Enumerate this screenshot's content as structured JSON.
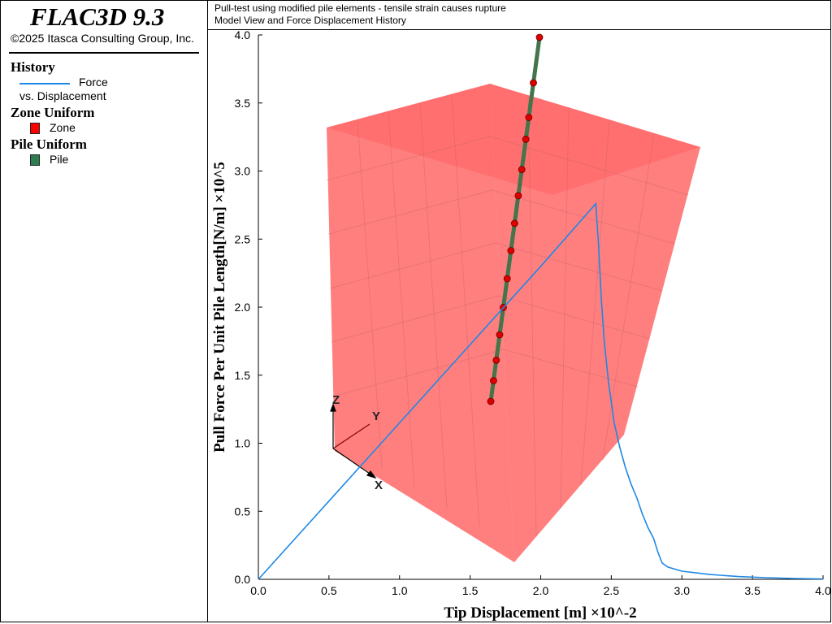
{
  "app": {
    "title": "FLAC3D 9.3",
    "copyright": "©2025 Itasca Consulting Group, Inc."
  },
  "legend": {
    "history_heading": "History",
    "history_line1": "Force",
    "history_line2": "vs. Displacement",
    "zone_heading": "Zone Uniform",
    "zone_label": "Zone",
    "pile_heading": "Pile Uniform",
    "pile_label": "Pile"
  },
  "header": {
    "line1": "Pull-test using modified pile elements - tensile strain causes rupture",
    "line2": "Model View and Force Displacement History"
  },
  "axes_triad": {
    "x": "X",
    "y": "Y",
    "z": "Z"
  },
  "colors": {
    "history": "#1e88e5",
    "zone": "#ff0000",
    "pile": "#2e7d4f",
    "node": "#dd0000"
  },
  "chart_data": {
    "type": "line",
    "xlabel": "Tip Displacement [m] ×10^-2",
    "ylabel": "Pull Force Per Unit Pile Length[N/m] ×10^5",
    "xlim": [
      0,
      4
    ],
    "ylim": [
      0,
      4
    ],
    "xticks": [
      "0.0",
      "0.5",
      "1.0",
      "1.5",
      "2.0",
      "2.5",
      "3.0",
      "3.5",
      "4.0"
    ],
    "yticks": [
      "0.0",
      "0.5",
      "1.0",
      "1.5",
      "2.0",
      "2.5",
      "3.0",
      "3.5",
      "4.0"
    ],
    "grid": false,
    "series": [
      {
        "name": "Force vs. Displacement",
        "x": [
          0,
          0.5,
          1.0,
          1.5,
          2.0,
          2.39,
          2.41,
          2.43,
          2.45,
          2.48,
          2.52,
          2.56,
          2.6,
          2.64,
          2.68,
          2.72,
          2.76,
          2.8,
          2.83,
          2.86,
          2.9,
          3.0,
          3.2,
          3.4,
          3.6,
          3.8,
          4.0
        ],
        "y": [
          0,
          0.575,
          1.15,
          1.725,
          2.3,
          2.76,
          2.45,
          2.05,
          1.75,
          1.45,
          1.15,
          0.97,
          0.82,
          0.7,
          0.6,
          0.48,
          0.38,
          0.3,
          0.2,
          0.12,
          0.09,
          0.06,
          0.035,
          0.02,
          0.012,
          0.006,
          0.003
        ]
      }
    ]
  }
}
